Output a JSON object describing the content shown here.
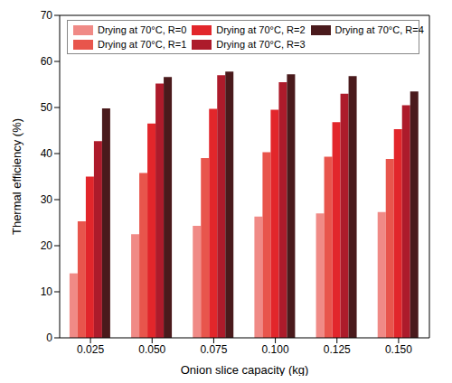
{
  "chart_data": {
    "type": "bar",
    "x_label": "Onion slice capacity (kg)",
    "y_label": "Thermal efficiency (%)",
    "categories": [
      "0.025",
      "0.050",
      "0.075",
      "0.100",
      "0.125",
      "0.150"
    ],
    "series": [
      {
        "name": "Drying at 70°C, R=0",
        "color": "#f08a86",
        "values": [
          14,
          22.5,
          24.3,
          26.3,
          27,
          27.3
        ]
      },
      {
        "name": "Drying at 70°C, R=1",
        "color": "#e8554c",
        "values": [
          25.3,
          35.8,
          39,
          40.3,
          39.3,
          38.8
        ]
      },
      {
        "name": "Drying at 70°C, R=2",
        "color": "#e2262b",
        "values": [
          35,
          46.5,
          49.7,
          49.5,
          46.8,
          45.3
        ]
      },
      {
        "name": "Drying at 70°C, R=3",
        "color": "#ad1b2b",
        "values": [
          42.7,
          55.2,
          57,
          55.5,
          53,
          50.5
        ]
      },
      {
        "name": "Drying at 70°C, R=4",
        "color": "#4a1a1c",
        "values": [
          49.8,
          56.6,
          57.8,
          57.2,
          56.8,
          53.5
        ]
      }
    ],
    "ylim": [
      0,
      70
    ],
    "yticks": [
      0,
      10,
      20,
      30,
      40,
      50,
      60,
      70
    ],
    "grid": false,
    "legend": "top"
  }
}
